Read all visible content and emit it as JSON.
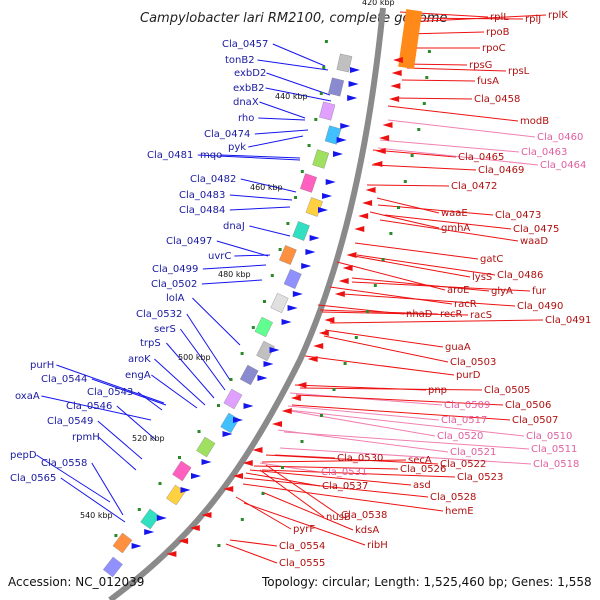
{
  "title": "Campylobacter lari RM2100, complete genome",
  "accession": "Accession: NC_012039",
  "summary": "Topology: circular; Length: 1,525,460 bp; Genes: 1,558",
  "colors": {
    "backbone": "#8a8a8a",
    "forward_gene": "#1515ee",
    "reverse_gene": "#ee1111",
    "reverse_gene_light": "#f080b0",
    "tick_mark": "#2a8a2a",
    "rna_feature": "#ff8a1a"
  },
  "ticks": [
    "420 kbp",
    "440 kbp",
    "460 kbp",
    "480 kbp",
    "500 kbp",
    "520 kbp",
    "540 kbp"
  ],
  "left_labels": [
    "Cla_0457",
    "tonB2",
    "exbD2",
    "exbB2",
    "dnaX",
    "rho",
    "Cla_0474",
    "pyk",
    "Cla_0481",
    "mqo",
    "Cla_0482",
    "Cla_0483",
    "Cla_0484",
    "dnaJ",
    "Cla_0497",
    "uvrC",
    "Cla_0499",
    "Cla_0502",
    "lolA",
    "Cla_0532",
    "serS",
    "trpS",
    "aroK",
    "engA",
    "purH",
    "Cla_0544",
    "Cla_0543",
    "oxaA",
    "Cla_0546",
    "Cla_0549",
    "rpmH",
    "pepD",
    "Cla_0558",
    "Cla_0565"
  ],
  "right_labels": [
    "rplL",
    "rplJ",
    "rplK",
    "rpoB",
    "rpoC",
    "rpsG",
    "rpsL",
    "fusA",
    "Cla_0458",
    "modB",
    "Cla_0460",
    "Cla_0463",
    "Cla_0465",
    "Cla_0464",
    "Cla_0469",
    "Cla_0472",
    "waaE",
    "Cla_0473",
    "gmhA",
    "Cla_0475",
    "waaD",
    "gatC",
    "lysS",
    "Cla_0486",
    "aroE",
    "glyA",
    "fur",
    "racR",
    "Cla_0490",
    "nhaD",
    "recR",
    "racS",
    "Cla_0491",
    "guaA",
    "Cla_0503",
    "purD",
    "pnp",
    "Cla_0505",
    "Cla_0509",
    "Cla_0506",
    "Cla_0517",
    "Cla_0507",
    "Cla_0520",
    "Cla_0510",
    "Cla_0521",
    "Cla_0511",
    "Cla_0530",
    "Cla_0522",
    "Cla_0518",
    "secA",
    "Cla_0531",
    "Cla_0526",
    "Cla_0523",
    "asd",
    "Cla_0537",
    "Cla_0528",
    "hemE",
    "nusB",
    "Cla_0538",
    "kdsA",
    "pyrF",
    "ribH",
    "Cla_0554",
    "Cla_0555"
  ]
}
